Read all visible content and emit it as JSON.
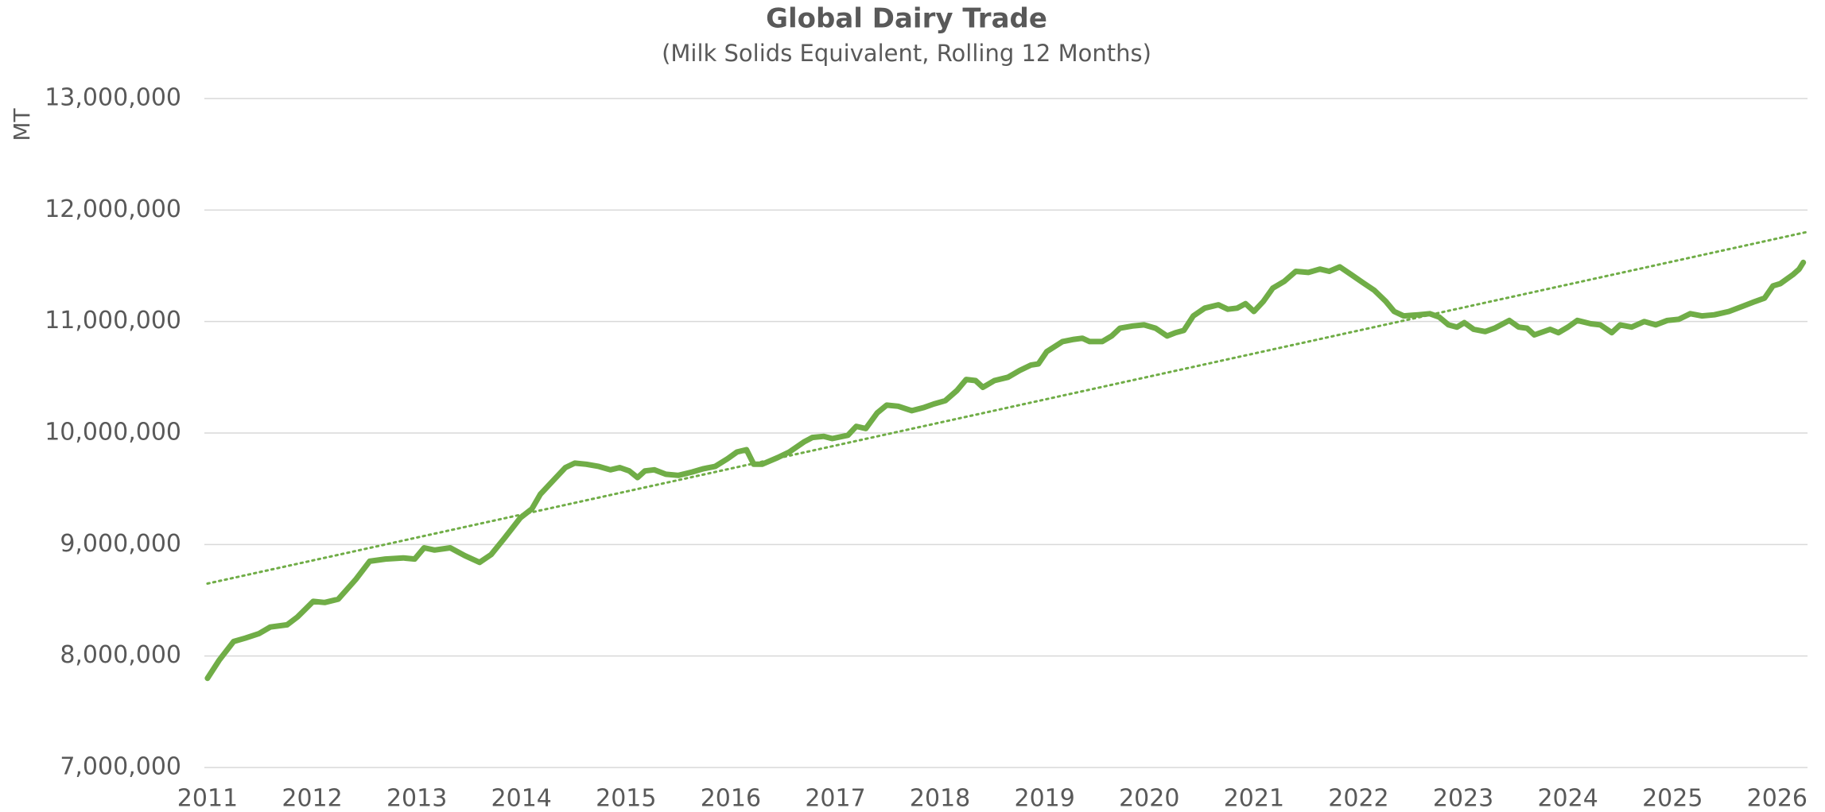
{
  "chart_data": {
    "type": "line",
    "title": "Global Dairy Trade",
    "subtitle": "(Milk Solids Equivalent, Rolling 12 Months)",
    "y_label": "MT",
    "xlim": [
      2010.97,
      2026.29
    ],
    "xticks": [
      2011,
      2012,
      2013,
      2014,
      2015,
      2016,
      2017,
      2018,
      2019,
      2020,
      2021,
      2022,
      2023,
      2024,
      2025,
      2026
    ],
    "ylim": [
      7000000,
      13000000
    ],
    "yticks": [
      {
        "value": 7000000,
        "label": "7,000,000"
      },
      {
        "value": 8000000,
        "label": "8,000,000"
      },
      {
        "value": 9000000,
        "label": "9,000,000"
      },
      {
        "value": 10000000,
        "label": "10,000,000"
      },
      {
        "value": 11000000,
        "label": "11,000,000"
      },
      {
        "value": 12000000,
        "label": "12,000,000"
      },
      {
        "value": 13000000,
        "label": "13,000,000"
      }
    ],
    "grid": true,
    "series": [
      {
        "color": "#70ad47",
        "x": [
          2011.0,
          2011.11,
          2011.25,
          2011.36,
          2011.49,
          2011.6,
          2011.76,
          2011.86,
          2012.01,
          2012.12,
          2012.25,
          2012.42,
          2012.55,
          2012.7,
          2012.87,
          2012.98,
          2013.07,
          2013.17,
          2013.32,
          2013.46,
          2013.6,
          2013.71,
          2013.84,
          2013.99,
          2014.1,
          2014.18,
          2014.32,
          2014.42,
          2014.51,
          2014.62,
          2014.74,
          2014.85,
          2014.94,
          2015.03,
          2015.11,
          2015.18,
          2015.27,
          2015.38,
          2015.5,
          2015.63,
          2015.74,
          2015.85,
          2015.97,
          2016.06,
          2016.15,
          2016.22,
          2016.3,
          2016.45,
          2016.56,
          2016.7,
          2016.78,
          2016.89,
          2016.97,
          2017.12,
          2017.2,
          2017.29,
          2017.4,
          2017.49,
          2017.6,
          2017.73,
          2017.85,
          2017.94,
          2018.05,
          2018.16,
          2018.25,
          2018.34,
          2018.41,
          2018.52,
          2018.65,
          2018.76,
          2018.87,
          2018.94,
          2019.02,
          2019.17,
          2019.28,
          2019.36,
          2019.43,
          2019.55,
          2019.64,
          2019.72,
          2019.84,
          2019.95,
          2020.06,
          2020.17,
          2020.25,
          2020.33,
          2020.42,
          2020.53,
          2020.66,
          2020.75,
          2020.84,
          2020.92,
          2021.0,
          2021.09,
          2021.18,
          2021.29,
          2021.4,
          2021.52,
          2021.63,
          2021.72,
          2021.82,
          2021.93,
          2022.04,
          2022.15,
          2022.26,
          2022.34,
          2022.43,
          2022.57,
          2022.68,
          2022.77,
          2022.86,
          2022.94,
          2023.01,
          2023.1,
          2023.21,
          2023.3,
          2023.44,
          2023.53,
          2023.61,
          2023.68,
          2023.83,
          2023.91,
          2024.0,
          2024.09,
          2024.22,
          2024.31,
          2024.42,
          2024.5,
          2024.61,
          2024.73,
          2024.84,
          2024.95,
          2025.06,
          2025.17,
          2025.28,
          2025.4,
          2025.54,
          2025.68,
          2025.79,
          2025.88,
          2025.96,
          2026.03,
          2026.15,
          2026.21,
          2026.25
        ],
        "values": [
          7800000,
          7960000,
          8130000,
          8160000,
          8200000,
          8260000,
          8280000,
          8350000,
          8490000,
          8480000,
          8510000,
          8690000,
          8850000,
          8870000,
          8880000,
          8870000,
          8970000,
          8950000,
          8970000,
          8900000,
          8840000,
          8910000,
          9060000,
          9240000,
          9320000,
          9450000,
          9590000,
          9690000,
          9730000,
          9720000,
          9700000,
          9670000,
          9690000,
          9660000,
          9600000,
          9660000,
          9670000,
          9630000,
          9620000,
          9650000,
          9680000,
          9700000,
          9770000,
          9830000,
          9850000,
          9720000,
          9720000,
          9780000,
          9830000,
          9920000,
          9960000,
          9970000,
          9950000,
          9980000,
          10060000,
          10040000,
          10180000,
          10250000,
          10240000,
          10200000,
          10230000,
          10260000,
          10290000,
          10380000,
          10480000,
          10470000,
          10410000,
          10470000,
          10500000,
          10560000,
          10610000,
          10620000,
          10730000,
          10820000,
          10840000,
          10850000,
          10820000,
          10820000,
          10870000,
          10940000,
          10960000,
          10970000,
          10940000,
          10870000,
          10900000,
          10920000,
          11050000,
          11120000,
          11150000,
          11110000,
          11120000,
          11160000,
          11090000,
          11180000,
          11300000,
          11360000,
          11450000,
          11440000,
          11470000,
          11450000,
          11490000,
          11420000,
          11350000,
          11280000,
          11180000,
          11090000,
          11050000,
          11060000,
          11070000,
          11040000,
          10970000,
          10950000,
          10990000,
          10930000,
          10910000,
          10940000,
          11010000,
          10950000,
          10940000,
          10880000,
          10930000,
          10900000,
          10950000,
          11010000,
          10980000,
          10970000,
          10900000,
          10970000,
          10950000,
          11000000,
          10970000,
          11010000,
          11020000,
          11070000,
          11050000,
          11060000,
          11090000,
          11140000,
          11180000,
          11210000,
          11320000,
          11340000,
          11420000,
          11470000,
          11530000
        ]
      }
    ],
    "trendline": {
      "color": "#70ad47",
      "style": "dotted",
      "x": [
        2011.0,
        2026.27
      ],
      "values": [
        8650000,
        11800000
      ]
    }
  }
}
